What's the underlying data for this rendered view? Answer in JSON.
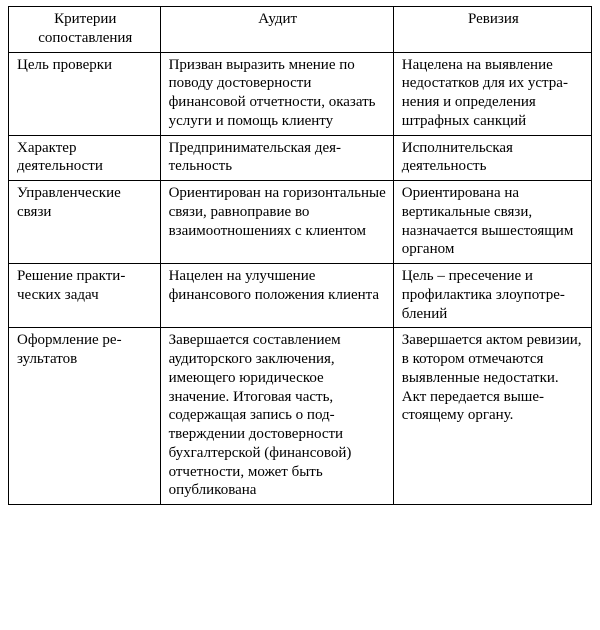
{
  "table": {
    "type": "table",
    "background_color": "#ffffff",
    "border_color": "#000000",
    "font_family": "Georgia, 'Times New Roman', serif",
    "font_size_pt": 11,
    "columns": [
      {
        "key": "criteria",
        "label": "Критерии сопоставления",
        "width_pct": 26,
        "align": "left"
      },
      {
        "key": "audit",
        "label": "Аудит",
        "width_pct": 40,
        "align": "left"
      },
      {
        "key": "revision",
        "label": "Ревизия",
        "width_pct": 34,
        "align": "left"
      }
    ],
    "rows": [
      {
        "criteria": "Цель проверки",
        "audit": "Призван выразить мнение по поводу достоверности финансовой отчетности, оказать услуги и помощь клиенту",
        "revision": "Нацелена на вы­явление недостат­ков для их устра­нения и опреде­ления штрафных санкций"
      },
      {
        "criteria": "Характер деятельности",
        "audit": "Предпринимательская дея­тельность",
        "revision": "Исполнительская деятельность"
      },
      {
        "criteria": "Управленческие связи",
        "audit": "Ориентирован на горизон­тальные связи, равноправие во взаимоотношениях с клиентом",
        "revision": "Ориентирована на вертикальные связи, назначает­ся вышестоящим органом"
      },
      {
        "criteria": "Решение практи­ческих задач",
        "audit": "Нацелен на улучшение финансового положения клиента",
        "revision": "Цель – пресече­ние и профилак­тика злоупотре­блений"
      },
      {
        "criteria": "Оформление ре­зультатов",
        "audit": "Завершается составлением аудиторского заключения, имеющего юридическое значение. Итоговая часть, содержащая запись о под­тверждении достоверности бухгалтерской (финансо­вой) отчетности, может быть опубликована",
        "revision": "Завершается ак­том ревизии, в котором отмеча­ются выявленные недостатки. Акт передается выше­стоящему органу."
      }
    ]
  }
}
